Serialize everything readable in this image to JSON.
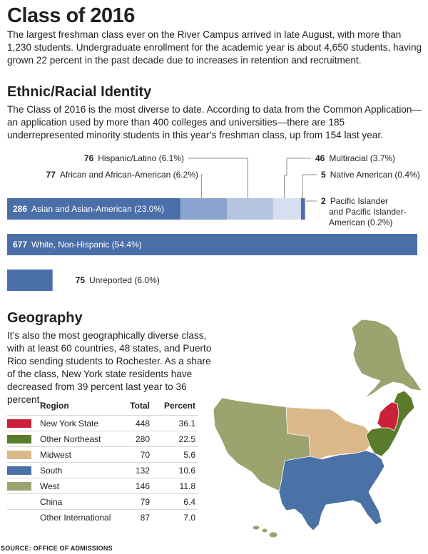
{
  "title": "Class of 2016",
  "intro": "The largest freshman class ever on the River Campus arrived in late August, with more than 1,230 students. Undergraduate enrollment for the academic year is about 4,650 students, having grown 22 percent in the past decade due to increases in retention and recruitment.",
  "ethnic_heading": "Ethnic/Racial Identity",
  "ethnic_text": "The Class of 2016 is the most diverse to date. According to data from the Common Application—an application used by more than 400 colleges and universities—there are 185 underrepresented minority students in this year’s freshman class, up from 154 last year.",
  "geo_heading": "Geography",
  "geo_text": "It’s also the most geographically diverse class, with at least 60 countries, 48 states, and Puerto Rico sending students to Rochester. As a share of the class, New York state residents have decreased from 39 percent last year to 36 percent.",
  "source": "SOURCE: OFFICE OF ADMISSIONS",
  "chart_data": {
    "type": "bar",
    "orientation": "horizontal",
    "unit": "students",
    "rows": [
      {
        "segments": [
          {
            "count": 286,
            "label": "Asian and Asian-American (23.0%)",
            "percent": 23.0,
            "color": "#4a6fa8"
          },
          {
            "count": 77,
            "label": "African and African-American (6.2%)",
            "percent": 6.2,
            "color": "#8aa3cc"
          },
          {
            "count": 76,
            "label": "Hispanic/Latino (6.1%)",
            "percent": 6.1,
            "color": "#b3c3e0"
          },
          {
            "count": 46,
            "label": "Multiracial (3.7%)",
            "percent": 3.7,
            "color": "#d6dfee"
          },
          {
            "count": 5,
            "label": "Native American (0.4%)",
            "percent": 0.4,
            "color": "#4a6fa8"
          },
          {
            "count": 2,
            "label": "Pacific Islander",
            "label_lines": [
              "and Pacific Islander-",
              "American (0.2%)"
            ],
            "percent": 0.2,
            "color": "#4a6fa8"
          }
        ]
      },
      {
        "segments": [
          {
            "count": 677,
            "label": "White, Non-Hispanic (54.4%)",
            "percent": 54.4,
            "color": "#4a6fa8"
          }
        ]
      },
      {
        "segments": [
          {
            "count": 75,
            "label": "Unreported (6.0%)",
            "percent": 6.0,
            "color": "#4a6fa8"
          }
        ]
      }
    ]
  },
  "geo_table": {
    "headers": {
      "region": "Region",
      "total": "Total",
      "percent": "Percent"
    },
    "rows": [
      {
        "region": "New York State",
        "total": "448",
        "percent": "36.1",
        "color": "#cc1f3a"
      },
      {
        "region": "Other Northeast",
        "total": "280",
        "percent": "22.5",
        "color": "#5a7a2c"
      },
      {
        "region": "Midwest",
        "total": "70",
        "percent": "5.6",
        "color": "#dbb88a"
      },
      {
        "region": "South",
        "total": "132",
        "percent": "10.6",
        "color": "#4a72a6"
      },
      {
        "region": "West",
        "total": "146",
        "percent": "11.8",
        "color": "#9ca36e"
      },
      {
        "region": "China",
        "total": "79",
        "percent": "6.4",
        "color": ""
      },
      {
        "region": "Other International",
        "total": "87",
        "percent": "7.0",
        "color": ""
      }
    ]
  },
  "map_colors": {
    "new_york": "#cc1f3a",
    "other_northeast": "#5a7a2c",
    "midwest": "#dbb88a",
    "south": "#4a72a6",
    "west": "#9ca36e"
  }
}
